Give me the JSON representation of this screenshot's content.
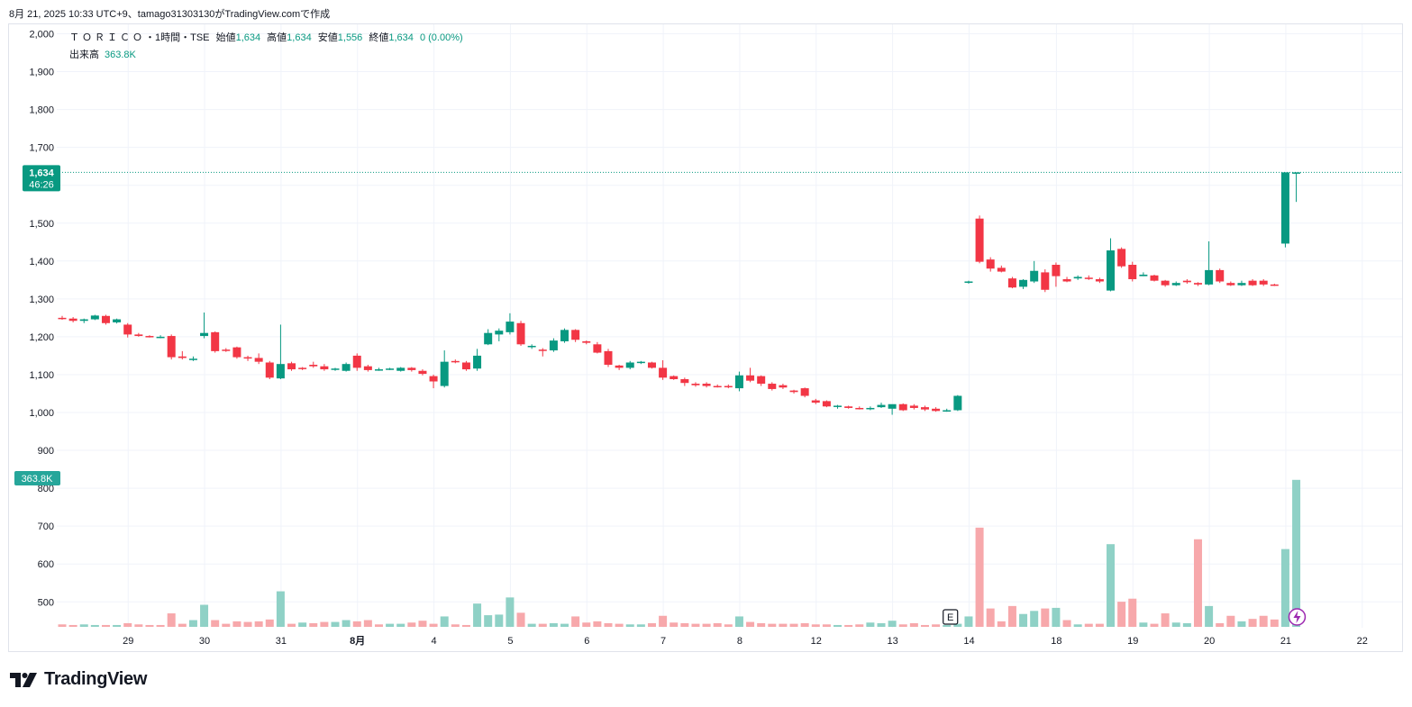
{
  "header": {
    "caption": "8月 21, 2025 10:33 UTC+9、tamago31303130がTradingView.comで作成"
  },
  "legend": {
    "symbol": "ＴＯＲＩＣＯ",
    "meta": "・1時間・TSE",
    "open_label": "始値",
    "open": "1,634",
    "high_label": "高値",
    "high": "1,634",
    "low_label": "安値",
    "low": "1,556",
    "close_label": "終値",
    "close": "1,634",
    "change": "0 (0.00%)",
    "volume_label": "出来高",
    "volume": "363.8K"
  },
  "price_badge": {
    "price": "1,634",
    "countdown": "46:26"
  },
  "volume_badge": "363.8K",
  "brand": {
    "name": "TradingView"
  },
  "markers": {
    "earnings": "E",
    "dividend_icon": "lightning-icon"
  },
  "colors": {
    "up": "#089981",
    "down": "#f23645",
    "up_volume": "#8fd1c6",
    "down_volume": "#f7a8ab",
    "grid": "#f0f3fa"
  },
  "chart_data": {
    "type": "candlestick",
    "interval": "1h",
    "y_ticks": [
      "2,000",
      "1,900",
      "1,800",
      "1,700",
      "1,600",
      "1,500",
      "1,400",
      "1,300",
      "1,200",
      "1,100",
      "1,000",
      "900",
      "800",
      "700",
      "600",
      "500"
    ],
    "y_tick_values": [
      2000,
      1900,
      1800,
      1700,
      1600,
      1500,
      1400,
      1300,
      1200,
      1100,
      1000,
      900,
      800,
      700,
      600,
      500
    ],
    "x_ticks": [
      "29",
      "30",
      "31",
      "8月",
      "4",
      "5",
      "6",
      "7",
      "8",
      "12",
      "13",
      "14",
      "18",
      "19",
      "20",
      "21",
      "22"
    ],
    "x_tick_index": [
      6,
      13,
      20,
      27,
      34,
      41,
      48,
      55,
      62,
      69,
      76,
      83,
      91,
      98,
      105,
      112,
      119
    ],
    "last_price": 1634,
    "candles": [
      [
        1250,
        1255,
        1245,
        1248
      ],
      [
        1248,
        1252,
        1238,
        1242
      ],
      [
        1242,
        1248,
        1236,
        1246
      ],
      [
        1246,
        1258,
        1244,
        1256
      ],
      [
        1255,
        1258,
        1232,
        1236
      ],
      [
        1238,
        1248,
        1235,
        1246
      ],
      [
        1232,
        1236,
        1198,
        1206
      ],
      [
        1206,
        1210,
        1200,
        1202
      ],
      [
        1202,
        1204,
        1198,
        1200
      ],
      [
        1200,
        1204,
        1196,
        1200
      ],
      [
        1202,
        1206,
        1140,
        1146
      ],
      [
        1148,
        1162,
        1140,
        1144
      ],
      [
        1140,
        1148,
        1136,
        1142
      ],
      [
        1202,
        1264,
        1196,
        1210
      ],
      [
        1212,
        1214,
        1158,
        1162
      ],
      [
        1166,
        1170,
        1160,
        1164
      ],
      [
        1172,
        1174,
        1142,
        1146
      ],
      [
        1146,
        1150,
        1136,
        1144
      ],
      [
        1144,
        1156,
        1128,
        1134
      ],
      [
        1132,
        1136,
        1088,
        1092
      ],
      [
        1090,
        1232,
        1088,
        1128
      ],
      [
        1130,
        1134,
        1110,
        1114
      ],
      [
        1118,
        1120,
        1112,
        1116
      ],
      [
        1126,
        1134,
        1118,
        1122
      ],
      [
        1122,
        1128,
        1110,
        1114
      ],
      [
        1114,
        1118,
        1110,
        1116
      ],
      [
        1110,
        1132,
        1108,
        1128
      ],
      [
        1150,
        1156,
        1110,
        1118
      ],
      [
        1122,
        1126,
        1108,
        1112
      ],
      [
        1114,
        1118,
        1110,
        1114
      ],
      [
        1114,
        1118,
        1112,
        1116
      ],
      [
        1110,
        1120,
        1108,
        1118
      ],
      [
        1118,
        1120,
        1108,
        1112
      ],
      [
        1110,
        1114,
        1098,
        1102
      ],
      [
        1096,
        1100,
        1064,
        1082
      ],
      [
        1070,
        1164,
        1066,
        1134
      ],
      [
        1136,
        1140,
        1130,
        1134
      ],
      [
        1132,
        1136,
        1110,
        1114
      ],
      [
        1116,
        1168,
        1110,
        1150
      ],
      [
        1180,
        1220,
        1178,
        1210
      ],
      [
        1206,
        1222,
        1188,
        1216
      ],
      [
        1212,
        1262,
        1206,
        1240
      ],
      [
        1236,
        1242,
        1176,
        1180
      ],
      [
        1174,
        1180,
        1168,
        1176
      ],
      [
        1166,
        1170,
        1148,
        1164
      ],
      [
        1164,
        1196,
        1160,
        1190
      ],
      [
        1188,
        1222,
        1184,
        1218
      ],
      [
        1218,
        1220,
        1186,
        1192
      ],
      [
        1188,
        1190,
        1180,
        1184
      ],
      [
        1180,
        1186,
        1156,
        1158
      ],
      [
        1162,
        1168,
        1120,
        1126
      ],
      [
        1124,
        1126,
        1112,
        1118
      ],
      [
        1118,
        1136,
        1114,
        1132
      ],
      [
        1134,
        1136,
        1128,
        1134
      ],
      [
        1132,
        1134,
        1116,
        1118
      ],
      [
        1118,
        1138,
        1086,
        1092
      ],
      [
        1096,
        1098,
        1086,
        1088
      ],
      [
        1088,
        1092,
        1070,
        1078
      ],
      [
        1076,
        1080,
        1068,
        1072
      ],
      [
        1076,
        1080,
        1066,
        1070
      ],
      [
        1070,
        1074,
        1066,
        1068
      ],
      [
        1070,
        1074,
        1064,
        1068
      ],
      [
        1064,
        1108,
        1056,
        1098
      ],
      [
        1098,
        1118,
        1080,
        1084
      ],
      [
        1096,
        1098,
        1070,
        1076
      ],
      [
        1076,
        1080,
        1058,
        1062
      ],
      [
        1072,
        1076,
        1062,
        1066
      ],
      [
        1058,
        1060,
        1050,
        1054
      ],
      [
        1064,
        1066,
        1040,
        1044
      ],
      [
        1032,
        1036,
        1022,
        1026
      ],
      [
        1030,
        1032,
        1014,
        1016
      ],
      [
        1016,
        1020,
        1010,
        1018
      ],
      [
        1016,
        1018,
        1010,
        1012
      ],
      [
        1012,
        1016,
        1008,
        1010
      ],
      [
        1010,
        1016,
        1006,
        1012
      ],
      [
        1014,
        1026,
        1012,
        1020
      ],
      [
        1010,
        1018,
        994,
        1022
      ],
      [
        1022,
        1024,
        1004,
        1006
      ],
      [
        1018,
        1022,
        1008,
        1012
      ],
      [
        1014,
        1018,
        1004,
        1008
      ],
      [
        1010,
        1014,
        1002,
        1004
      ],
      [
        1004,
        1010,
        1002,
        1006
      ],
      [
        1006,
        1046,
        1004,
        1044
      ],
      [
        1344,
        1348,
        1340,
        1346
      ],
      [
        1512,
        1520,
        1394,
        1398
      ],
      [
        1404,
        1410,
        1372,
        1380
      ],
      [
        1382,
        1388,
        1370,
        1372
      ],
      [
        1354,
        1358,
        1328,
        1330
      ],
      [
        1332,
        1352,
        1326,
        1350
      ],
      [
        1346,
        1400,
        1342,
        1374
      ],
      [
        1370,
        1378,
        1318,
        1324
      ],
      [
        1390,
        1396,
        1332,
        1360
      ],
      [
        1352,
        1358,
        1344,
        1346
      ],
      [
        1354,
        1362,
        1350,
        1358
      ],
      [
        1356,
        1362,
        1350,
        1354
      ],
      [
        1352,
        1356,
        1342,
        1346
      ],
      [
        1322,
        1460,
        1320,
        1428
      ],
      [
        1432,
        1436,
        1382,
        1386
      ],
      [
        1390,
        1398,
        1346,
        1352
      ],
      [
        1360,
        1370,
        1360,
        1364
      ],
      [
        1362,
        1364,
        1346,
        1348
      ],
      [
        1348,
        1350,
        1332,
        1336
      ],
      [
        1336,
        1346,
        1334,
        1342
      ],
      [
        1348,
        1352,
        1340,
        1344
      ],
      [
        1342,
        1344,
        1334,
        1338
      ],
      [
        1338,
        1452,
        1336,
        1376
      ],
      [
        1376,
        1380,
        1342,
        1346
      ],
      [
        1342,
        1346,
        1334,
        1336
      ],
      [
        1336,
        1348,
        1334,
        1342
      ],
      [
        1348,
        1352,
        1334,
        1336
      ],
      [
        1348,
        1352,
        1334,
        1338
      ],
      [
        1338,
        1340,
        1334,
        1336
      ],
      [
        1446,
        1634,
        1436,
        1634
      ],
      [
        1634,
        1634,
        1556,
        1634
      ]
    ],
    "volume_pane_scale": "relative",
    "volumes": [
      4,
      3,
      4,
      3,
      3,
      3,
      6,
      4,
      3,
      3,
      22,
      5,
      11,
      36,
      11,
      5,
      9,
      8,
      9,
      12,
      58,
      5,
      7,
      6,
      8,
      8,
      11,
      9,
      11,
      4,
      5,
      5,
      7,
      10,
      5,
      17,
      4,
      3,
      38,
      19,
      20,
      48,
      23,
      5,
      5,
      6,
      5,
      17,
      7,
      9,
      6,
      5,
      4,
      4,
      6,
      18,
      7,
      6,
      5,
      5,
      6,
      4,
      17,
      8,
      6,
      5,
      5,
      5,
      6,
      4,
      4,
      3,
      3,
      4,
      7,
      6,
      10,
      4,
      6,
      3,
      4,
      3,
      5,
      17,
      162,
      30,
      9,
      34,
      21,
      26,
      30,
      31,
      11,
      4,
      5,
      5,
      135,
      41,
      46,
      7,
      5,
      22,
      7,
      6,
      143,
      34,
      6,
      18,
      9,
      13,
      18,
      12,
      127,
      240
    ],
    "volume_up": [
      false,
      false,
      true,
      true,
      false,
      true,
      false,
      false,
      false,
      false,
      false,
      false,
      true,
      true,
      false,
      false,
      false,
      false,
      false,
      false,
      true,
      false,
      true,
      false,
      false,
      true,
      true,
      false,
      false,
      false,
      true,
      true,
      false,
      false,
      false,
      true,
      false,
      false,
      true,
      true,
      true,
      true,
      false,
      true,
      false,
      true,
      true,
      false,
      false,
      false,
      false,
      false,
      true,
      true,
      false,
      false,
      false,
      false,
      false,
      false,
      false,
      false,
      true,
      false,
      false,
      false,
      false,
      false,
      false,
      false,
      false,
      true,
      false,
      false,
      true,
      true,
      true,
      false,
      false,
      false,
      false,
      true,
      true,
      true,
      false,
      false,
      false,
      false,
      true,
      true,
      false,
      true,
      false,
      true,
      false,
      false,
      true,
      false,
      false,
      true,
      false,
      false,
      true,
      true,
      false,
      true,
      false,
      false,
      true,
      false,
      false,
      false,
      true,
      true
    ]
  }
}
